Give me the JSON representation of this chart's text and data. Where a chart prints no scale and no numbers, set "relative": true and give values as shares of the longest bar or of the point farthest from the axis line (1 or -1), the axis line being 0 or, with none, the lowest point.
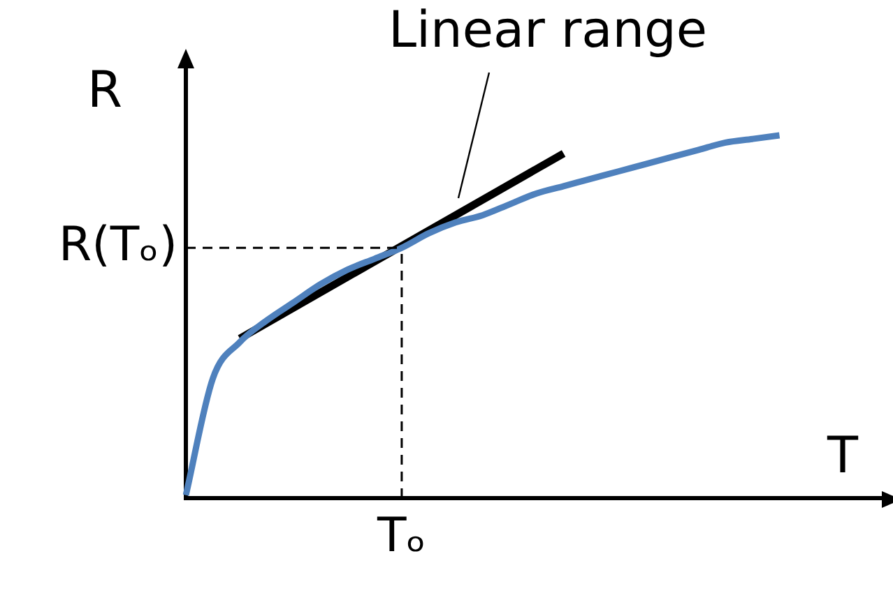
{
  "chart_data": {
    "type": "line",
    "relative": true,
    "xlabel": "T",
    "ylabel": "R",
    "legend": false,
    "marker": "none",
    "categories": [
      null,
      null,
      null,
      null,
      null,
      null,
      null,
      null,
      null,
      null,
      null,
      null,
      null,
      null,
      null,
      null,
      null,
      null,
      null,
      null,
      null,
      null,
      null,
      null,
      null,
      null,
      null
    ],
    "series": [
      {
        "color": "#4f81bd",
        "values": [
          0.008,
          0.33,
          0.43,
          0.49,
          0.54,
          0.59,
          0.63,
          0.66,
          0.69,
          0.73,
          0.76,
          0.78,
          0.81,
          0.84,
          0.86,
          0.88,
          0.9,
          0.92,
          0.94,
          0.96,
          0.98,
          0.99,
          1,
          null,
          null,
          null,
          null
        ]
      },
      {
        "type": "line",
        "color": "#000000",
        "values": [
          null,
          null,
          0.44,
          null,
          null,
          null,
          null,
          null,
          null,
          null,
          null,
          null,
          null,
          null,
          0.95,
          null,
          null,
          null,
          null,
          null,
          null,
          null,
          null,
          null,
          null,
          null,
          null
        ]
      }
    ],
    "ref_lines": [
      {
        "axis": "y",
        "value": 0.69,
        "label": "R(Tₒ)",
        "color": "#000000",
        "line_style": "dashed"
      }
    ],
    "annotations": [
      "Linear range",
      "Tₒ"
    ]
  }
}
